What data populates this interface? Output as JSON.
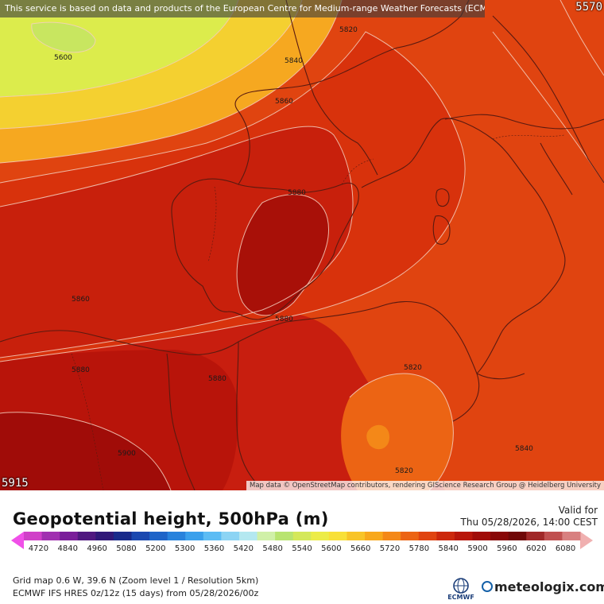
{
  "banner": "This service is based on data and products of the European Centre for Medium-range Weather Forecasts (ECMWF)",
  "corner_top_right": "5570",
  "corner_bottom_left": "5915",
  "attribution": "Map data © OpenStreetMap contributors, rendering GIScience Research Group @ Heidelberg University",
  "contour_labels": [
    "5820",
    "5840",
    "5860",
    "5880",
    "5880",
    "5860",
    "5880",
    "5880",
    "5900",
    "5600",
    "5820",
    "5840",
    "5820"
  ],
  "legend": {
    "title": "Geopotential height, 500hPa (m)",
    "valid_label": "Valid for",
    "valid_time": "Thu 05/28/2026, 14:00 CEST",
    "ticks": [
      "4720",
      "4840",
      "4960",
      "5080",
      "5200",
      "5300",
      "5360",
      "5420",
      "5480",
      "5540",
      "5600",
      "5660",
      "5720",
      "5780",
      "5840",
      "5900",
      "5960",
      "6020",
      "6080"
    ],
    "colors": [
      "#f050e8",
      "#d040c8",
      "#a030b0",
      "#7a1e9a",
      "#501880",
      "#301878",
      "#182a8a",
      "#1a48b0",
      "#1e64c8",
      "#2882dc",
      "#3aa0ec",
      "#5cbcf4",
      "#8cd4f4",
      "#b4e8f0",
      "#d0f0a8",
      "#b8e470",
      "#d4e85a",
      "#ecec48",
      "#f8e038",
      "#f8c428",
      "#f8a81c",
      "#f48818",
      "#ec6414",
      "#e04410",
      "#cc280c",
      "#b8160a",
      "#a00c08",
      "#880808",
      "#700808",
      "#a02828",
      "#c05050",
      "#d88080",
      "#f0b0b0"
    ]
  },
  "info": {
    "line1": "Grid map 0.6 W, 39.6 N (Zoom level 1 / Resolution 5km)",
    "line2": "ECMWF IFS HRES 0z/12z (15 days) from 05/28/2026/00z"
  },
  "logos": {
    "ecmwf": "ECMWF",
    "meteologix": "meteologix.com"
  }
}
